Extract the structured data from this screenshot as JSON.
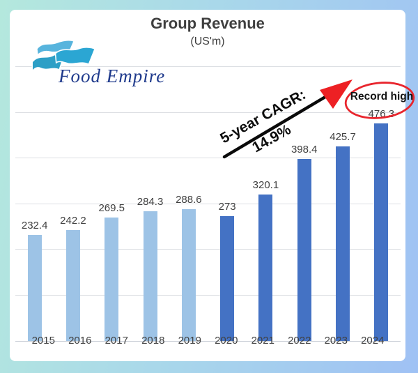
{
  "background": {
    "colors": [
      "#b4e8dd",
      "#a9d8ea",
      "#9fc1f4"
    ]
  },
  "logo": {
    "company": "Food Empire",
    "text_color": "#1f3a8c",
    "flag_colors": [
      "#57b4dd",
      "#2ba6d3",
      "#2d9fc6"
    ]
  },
  "chart_data": {
    "type": "bar",
    "title": "Group Revenue",
    "subtitle": "(US'm)",
    "categories": [
      "2015",
      "2016",
      "2017",
      "2018",
      "2019",
      "2020",
      "2021",
      "2022",
      "2023",
      "2024"
    ],
    "values": [
      232.4,
      242.2,
      269.5,
      284.3,
      288.6,
      273,
      320.1,
      398.4,
      425.7,
      476.3
    ],
    "labels": [
      "232.4",
      "242.2",
      "269.5",
      "284.3",
      "288.6",
      "273",
      "320.1",
      "398.4",
      "425.7",
      "476.3"
    ],
    "ylim": [
      0,
      600
    ],
    "gridline_interval": 100,
    "grid": true,
    "legend": "none",
    "xlabel": "",
    "ylabel": "",
    "bar_color_2015_2019": "#9dc3e6",
    "bar_color_2020_2024": "#4472c4",
    "dark_from_index": 5,
    "label_color": "#404040",
    "grid_color": "#dcdfe3",
    "axis_color": "#c6ccd4",
    "title_color": "#3f3f3f"
  },
  "annotations": {
    "cagr_label": "5-year CAGR:",
    "cagr_value": "14.9%",
    "record_label": "Record high",
    "record_value": "476.3",
    "arrow_color": "#0a0a0a",
    "arrowhead_color": "#ed2024",
    "ellipse_color": "#e8252d"
  }
}
